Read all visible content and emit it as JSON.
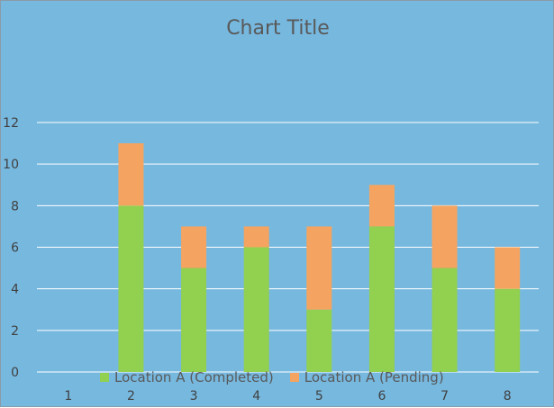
{
  "chart_data": {
    "type": "bar",
    "stacked": true,
    "title": "Chart Title",
    "categories": [
      "1",
      "2",
      "3",
      "4",
      "5",
      "6",
      "7",
      "8"
    ],
    "series": [
      {
        "name": "Location A (Completed)",
        "color": "#92d050",
        "values": [
          0,
          8,
          5,
          6,
          3,
          7,
          5,
          4
        ]
      },
      {
        "name": "Location A (Pending)",
        "color": "#f4a460",
        "values": [
          0,
          3,
          2,
          1,
          4,
          2,
          3,
          2
        ]
      }
    ],
    "y_ticks": [
      "0",
      "2",
      "4",
      "6",
      "8",
      "10",
      "12"
    ],
    "ylim": [
      0,
      12
    ],
    "grid": true,
    "legend_position": "bottom",
    "background_color": "#77b8df",
    "gridline_color": "#ffffff"
  }
}
